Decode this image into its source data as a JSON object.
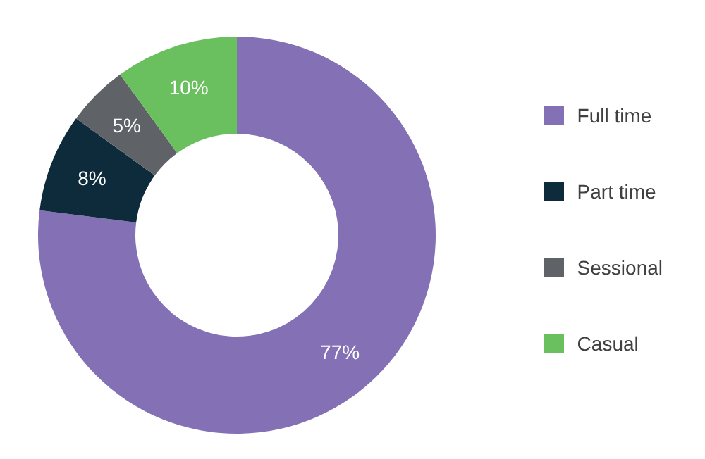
{
  "chart_data": {
    "type": "donut",
    "categories": [
      "Full time",
      "Part time",
      "Sessional",
      "Casual"
    ],
    "values": [
      77,
      8,
      5,
      10
    ],
    "colors": [
      "#8370b5",
      "#0d2b3a",
      "#5f6368",
      "#6abf5e"
    ],
    "value_labels": [
      "77%",
      "8%",
      "5%",
      "10%"
    ],
    "legend": "right"
  }
}
